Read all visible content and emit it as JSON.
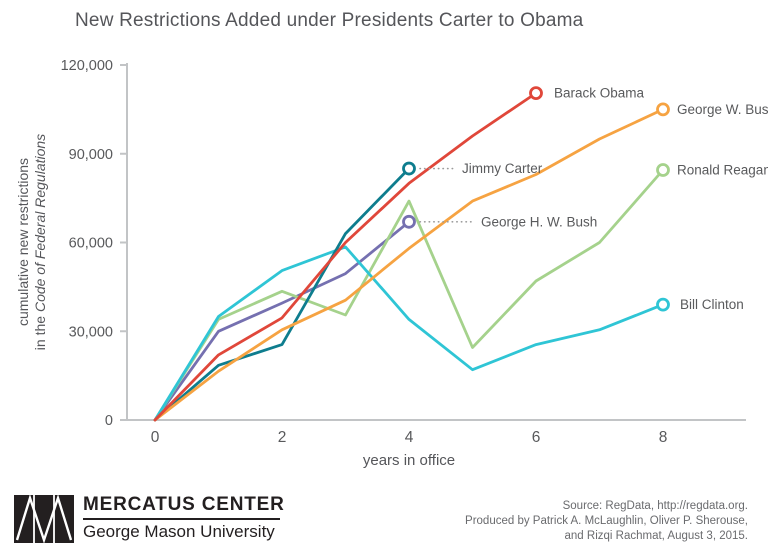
{
  "title": "New Restrictions Added under Presidents Carter to Obama",
  "chart_data": {
    "type": "line",
    "title": "New Restrictions Added under Presidents Carter to Obama",
    "xlabel": "years in office",
    "ylabel_line1": "cumulative new restrictions",
    "ylabel_line2_prefix": "in the ",
    "ylabel_line2_italic": "Code of Federal Regulations",
    "xlim": [
      0,
      8
    ],
    "ylim": [
      0,
      120000
    ],
    "x_ticks": [
      0,
      2,
      4,
      6,
      8
    ],
    "y_ticks": [
      0,
      30000,
      60000,
      90000,
      120000
    ],
    "grid": false,
    "legend_position": "end-of-line labels",
    "axis_color": "#c2c4c6",
    "tick_label_color": "#58595b",
    "series_label_color": "#595a5c",
    "leader_dot_color": "#9b9b9b",
    "series": [
      {
        "name": "George H. W. Bush",
        "color": "#7570b0",
        "x": [
          0,
          1,
          2,
          3,
          4
        ],
        "values": [
          0,
          30000,
          39500,
          49500,
          67000
        ],
        "label_dx": 72,
        "leader": true
      },
      {
        "name": "Ronald Reagan",
        "color": "#a5d28c",
        "x": [
          0,
          1,
          2,
          3,
          4,
          5,
          6,
          7,
          8
        ],
        "values": [
          0,
          34000,
          43500,
          35500,
          74000,
          24500,
          47000,
          60000,
          84500
        ],
        "label_dx": 14,
        "leader": false
      },
      {
        "name": "Bill Clinton",
        "color": "#2fc5d5",
        "x": [
          0,
          1,
          2,
          3,
          4,
          5,
          6,
          7,
          8
        ],
        "values": [
          0,
          35000,
          50500,
          58500,
          34000,
          17000,
          25500,
          30500,
          39000
        ],
        "label_dx": 17,
        "leader": false
      },
      {
        "name": "Jimmy Carter",
        "color": "#0e7d8e",
        "x": [
          0,
          1,
          2,
          3,
          4
        ],
        "values": [
          0,
          18500,
          25500,
          63000,
          85000
        ],
        "label_dx": 53,
        "leader": true
      },
      {
        "name": "George W. Bush",
        "color": "#f6a342",
        "x": [
          0,
          1,
          2,
          3,
          4,
          5,
          6,
          7,
          8
        ],
        "values": [
          0,
          16500,
          30500,
          40500,
          58000,
          74000,
          83000,
          95000,
          105000
        ],
        "label_dx": 14,
        "leader": false
      },
      {
        "name": "Barack Obama",
        "color": "#e0473a",
        "x": [
          0,
          1,
          2,
          3,
          4,
          5,
          6
        ],
        "values": [
          0,
          22000,
          34500,
          60000,
          80000,
          96000,
          110500
        ],
        "label_dx": 18,
        "leader": false
      }
    ]
  },
  "footer": {
    "logo_mark": "mercatus-mm-monogram",
    "logo_title": "MERCATUS CENTER",
    "logo_subtitle": "George Mason University",
    "source_lines": [
      "Source: RegData, http://regdata.org.",
      "Produced by Patrick A. McLaughlin, Oliver P. Sherouse,",
      "and Rizqi Rachmat, August 3, 2015."
    ]
  }
}
